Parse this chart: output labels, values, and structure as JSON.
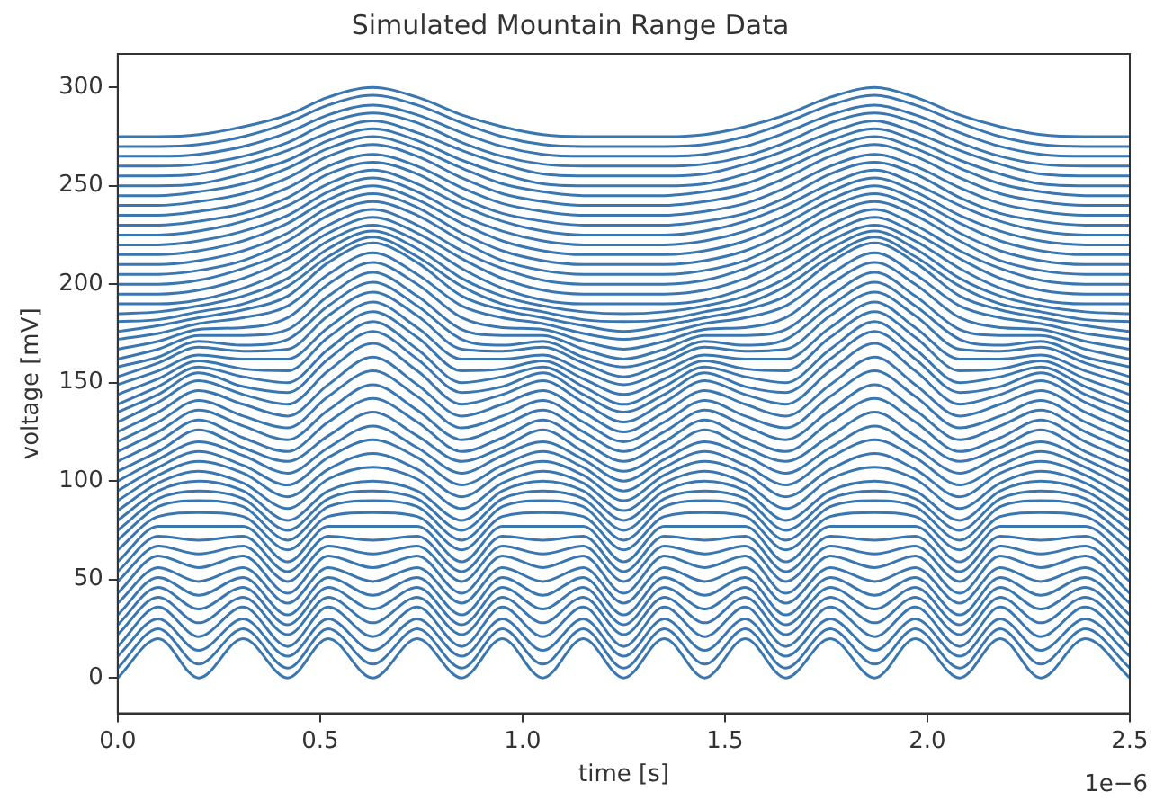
{
  "chart_data": {
    "type": "line",
    "title": "Simulated Mountain Range Data",
    "xlabel": "time [s]",
    "ylabel": "voltage [mV]",
    "annotations": [
      "1e−6"
    ],
    "x": [
      0,
      0.1,
      0.2,
      0.31,
      0.42,
      0.52,
      0.63,
      0.74,
      0.85,
      0.95,
      1.05,
      1.15,
      1.25,
      1.35,
      1.45,
      1.55,
      1.65,
      1.76,
      1.87,
      1.97,
      2.08,
      2.18,
      2.28,
      2.39,
      2.5
    ],
    "xlim": [
      0,
      2.5
    ],
    "xticks": [
      {
        "value": 0,
        "label": "0.0"
      },
      {
        "value": 0.5,
        "label": "0.5"
      },
      {
        "value": 1,
        "label": "1.0"
      },
      {
        "value": 1.5,
        "label": "1.5"
      },
      {
        "value": 2,
        "label": "2.0"
      },
      {
        "value": 2.5,
        "label": "2.5"
      }
    ],
    "ylim": [
      -18,
      317
    ],
    "yticks": [
      0,
      50,
      100,
      150,
      200,
      250,
      300
    ],
    "grid": false,
    "legend": false,
    "series": [
      {
        "color": "#3a76b0",
        "values": [
          0,
          20,
          0,
          20,
          0,
          20,
          0,
          20,
          0,
          20,
          0,
          20,
          0,
          20,
          0,
          20,
          0,
          20,
          0,
          20,
          0,
          20,
          0,
          20,
          0
        ]
      },
      {
        "color": "#3a76b0",
        "values": [
          5,
          25,
          7,
          25,
          5,
          25,
          7,
          25,
          5,
          25,
          7,
          25,
          5,
          25,
          7,
          25,
          5,
          25,
          7,
          25,
          5,
          25,
          7,
          25,
          5
        ]
      },
      {
        "color": "#3a76b0",
        "values": [
          11,
          30,
          14,
          30,
          11,
          30,
          14,
          30,
          11,
          30,
          14,
          30,
          11,
          30,
          14,
          30,
          11,
          30,
          14,
          30,
          11,
          30,
          14,
          30,
          11
        ]
      },
      {
        "color": "#3a76b0",
        "values": [
          16,
          36,
          21,
          36,
          16,
          36,
          21,
          36,
          16,
          36,
          21,
          36,
          16,
          36,
          21,
          36,
          16,
          36,
          21,
          36,
          16,
          36,
          21,
          36,
          16
        ]
      },
      {
        "color": "#3a76b0",
        "values": [
          22,
          41,
          28,
          41,
          22,
          41,
          28,
          41,
          22,
          41,
          28,
          41,
          22,
          41,
          28,
          41,
          22,
          41,
          28,
          41,
          22,
          41,
          28,
          41,
          22
        ]
      },
      {
        "color": "#3a76b0",
        "values": [
          27,
          46,
          35,
          46,
          27,
          46,
          35,
          46,
          27,
          46,
          35,
          46,
          27,
          46,
          35,
          46,
          27,
          46,
          35,
          46,
          27,
          46,
          35,
          46,
          27
        ]
      },
      {
        "color": "#3a76b0",
        "values": [
          32,
          51,
          42,
          51,
          32,
          51,
          42,
          51,
          32,
          51,
          42,
          51,
          32,
          51,
          42,
          51,
          32,
          51,
          42,
          51,
          32,
          51,
          42,
          51,
          32
        ]
      },
      {
        "color": "#3a76b0",
        "values": [
          38,
          56,
          49,
          56,
          38,
          56,
          49,
          56,
          38,
          56,
          49,
          56,
          38,
          56,
          49,
          56,
          38,
          56,
          49,
          56,
          38,
          56,
          49,
          56,
          38
        ]
      },
      {
        "color": "#3a76b0",
        "values": [
          43,
          62,
          56,
          62,
          43,
          62,
          56,
          62,
          43,
          62,
          56,
          62,
          43,
          62,
          56,
          62,
          43,
          62,
          56,
          62,
          43,
          62,
          56,
          62,
          43
        ]
      },
      {
        "color": "#3a76b0",
        "values": [
          49,
          67,
          63,
          67,
          49,
          67,
          63,
          67,
          49,
          67,
          63,
          67,
          49,
          67,
          63,
          67,
          49,
          67,
          63,
          67,
          49,
          67,
          63,
          67,
          49
        ]
      },
      {
        "color": "#3a76b0",
        "values": [
          54,
          72,
          70,
          72,
          54,
          72,
          70,
          72,
          54,
          72,
          70,
          72,
          54,
          72,
          70,
          72,
          54,
          72,
          70,
          72,
          54,
          72,
          70,
          72,
          54
        ]
      },
      {
        "color": "#3a76b0",
        "values": [
          59,
          77,
          77,
          77,
          59,
          77,
          77,
          77,
          59,
          77,
          77,
          77,
          59,
          77,
          77,
          77,
          59,
          77,
          77,
          77,
          59,
          77,
          77,
          77,
          59
        ]
      },
      {
        "color": "#3a76b0",
        "values": [
          65,
          82,
          84,
          82,
          65,
          82,
          84,
          82,
          65,
          82,
          84,
          82,
          65,
          82,
          84,
          82,
          65,
          82,
          84,
          82,
          65,
          82,
          84,
          82,
          65
        ]
      },
      {
        "color": "#3a76b0",
        "values": [
          70,
          87,
          90,
          87,
          70,
          87,
          90,
          87,
          70,
          87,
          90,
          87,
          70,
          87,
          90,
          87,
          70,
          87,
          90,
          87,
          70,
          87,
          90,
          87,
          70
        ]
      },
      {
        "color": "#3a76b0",
        "values": [
          75,
          91,
          95,
          91,
          75,
          91,
          95,
          91,
          75,
          91,
          95,
          91,
          75,
          91,
          95,
          91,
          75,
          91,
          95,
          91,
          75,
          91,
          95,
          91,
          75
        ]
      },
      {
        "color": "#3a76b0",
        "values": [
          80,
          95,
          100,
          95,
          80,
          95,
          100,
          95,
          80,
          95,
          100,
          95,
          80,
          95,
          100,
          95,
          80,
          95,
          100,
          95,
          80,
          95,
          100,
          95,
          80
        ]
      },
      {
        "color": "#3a76b0",
        "values": [
          85,
          99,
          105,
          99,
          86,
          101,
          107,
          101,
          86,
          99,
          105,
          99,
          85,
          99,
          105,
          99,
          86,
          101,
          107,
          101,
          86,
          99,
          105,
          99,
          85
        ]
      },
      {
        "color": "#3a76b0",
        "values": [
          90,
          103,
          110,
          104,
          92,
          106,
          114,
          106,
          92,
          104,
          110,
          103,
          90,
          103,
          110,
          104,
          92,
          106,
          114,
          106,
          92,
          104,
          110,
          103,
          90
        ]
      },
      {
        "color": "#3a76b0",
        "values": [
          95,
          107,
          115,
          108,
          98,
          112,
          121,
          112,
          98,
          108,
          115,
          107,
          95,
          107,
          115,
          108,
          98,
          112,
          121,
          112,
          98,
          108,
          115,
          107,
          95
        ]
      },
      {
        "color": "#3a76b0",
        "values": [
          100,
          111,
          120,
          113,
          104,
          117,
          128,
          117,
          104,
          113,
          120,
          111,
          100,
          111,
          120,
          113,
          104,
          117,
          128,
          117,
          104,
          113,
          120,
          111,
          100
        ]
      },
      {
        "color": "#3a76b0",
        "values": [
          105,
          115,
          126,
          117,
          110,
          123,
          135,
          123,
          110,
          117,
          126,
          115,
          105,
          115,
          126,
          117,
          110,
          123,
          135,
          123,
          110,
          117,
          126,
          115,
          105
        ]
      },
      {
        "color": "#3a76b0",
        "values": [
          110,
          120,
          131,
          122,
          115,
          130,
          142,
          130,
          115,
          122,
          131,
          120,
          110,
          120,
          131,
          122,
          115,
          130,
          142,
          130,
          115,
          122,
          131,
          120,
          110
        ]
      },
      {
        "color": "#3a76b0",
        "values": [
          115,
          125,
          136,
          128,
          121,
          136,
          149,
          136,
          121,
          128,
          136,
          125,
          115,
          125,
          136,
          128,
          121,
          136,
          149,
          136,
          121,
          128,
          136,
          125,
          115
        ]
      },
      {
        "color": "#3a76b0",
        "values": [
          120,
          130,
          141,
          133,
          127,
          143,
          156,
          143,
          127,
          133,
          141,
          130,
          120,
          130,
          141,
          133,
          127,
          143,
          156,
          143,
          127,
          133,
          141,
          130,
          120
        ]
      },
      {
        "color": "#3a76b0",
        "values": [
          125,
          135,
          146,
          139,
          133,
          149,
          163,
          149,
          133,
          139,
          146,
          135,
          125,
          135,
          146,
          139,
          133,
          149,
          163,
          149,
          133,
          139,
          146,
          135,
          125
        ]
      },
      {
        "color": "#3a76b0",
        "values": [
          130,
          140,
          151,
          144,
          139,
          156,
          170,
          156,
          139,
          144,
          151,
          140,
          130,
          140,
          151,
          144,
          139,
          156,
          170,
          156,
          139,
          144,
          151,
          140,
          130
        ]
      },
      {
        "color": "#3a76b0",
        "values": [
          135,
          144,
          155,
          148,
          145,
          162,
          176,
          162,
          145,
          148,
          155,
          144,
          135,
          144,
          155,
          148,
          145,
          162,
          176,
          162,
          145,
          148,
          155,
          144,
          135
        ]
      },
      {
        "color": "#3a76b0",
        "values": [
          139,
          148,
          158,
          153,
          150,
          167,
          181,
          167,
          150,
          153,
          158,
          148,
          139,
          148,
          158,
          153,
          150,
          167,
          181,
          167,
          150,
          153,
          158,
          148,
          139
        ]
      },
      {
        "color": "#3a76b0",
        "values": [
          144,
          152,
          161,
          157,
          156,
          173,
          186,
          173,
          156,
          157,
          161,
          152,
          144,
          152,
          161,
          157,
          156,
          173,
          186,
          173,
          156,
          157,
          161,
          152,
          144
        ]
      },
      {
        "color": "#3a76b0",
        "values": [
          149,
          156,
          164,
          162,
          162,
          178,
          191,
          178,
          162,
          162,
          164,
          156,
          149,
          156,
          164,
          162,
          162,
          178,
          191,
          178,
          162,
          162,
          164,
          156,
          149
        ]
      },
      {
        "color": "#3a76b0",
        "values": [
          153,
          160,
          168,
          166,
          167,
          184,
          196,
          184,
          167,
          166,
          168,
          160,
          153,
          160,
          168,
          166,
          167,
          184,
          196,
          184,
          167,
          166,
          168,
          160,
          153
        ]
      },
      {
        "color": "#3a76b0",
        "values": [
          158,
          163,
          171,
          169,
          172,
          189,
          201,
          189,
          172,
          169,
          171,
          163,
          158,
          163,
          171,
          169,
          172,
          189,
          201,
          189,
          172,
          169,
          171,
          163,
          158
        ]
      },
      {
        "color": "#3a76b0",
        "values": [
          162,
          167,
          174,
          174,
          177,
          194,
          206,
          194,
          177,
          174,
          174,
          167,
          162,
          167,
          174,
          174,
          177,
          194,
          206,
          194,
          177,
          174,
          174,
          167,
          162
        ]
      },
      {
        "color": "#3a76b0",
        "values": [
          167,
          171,
          177,
          178,
          183,
          200,
          211,
          200,
          183,
          178,
          177,
          171,
          167,
          171,
          177,
          178,
          183,
          200,
          211,
          200,
          183,
          178,
          177,
          171,
          167
        ]
      },
      {
        "color": "#3a76b0",
        "values": [
          172,
          175,
          180,
          183,
          189,
          205,
          216,
          205,
          189,
          183,
          180,
          175,
          172,
          175,
          180,
          183,
          189,
          205,
          216,
          205,
          189,
          183,
          180,
          175,
          172
        ]
      },
      {
        "color": "#3a76b0",
        "values": [
          176,
          179,
          183,
          187,
          194,
          211,
          221,
          211,
          194,
          187,
          183,
          179,
          176,
          179,
          183,
          187,
          194,
          211,
          221,
          211,
          194,
          187,
          183,
          179,
          176
        ]
      },
      {
        "color": "#3a76b0",
        "values": [
          181,
          182,
          186,
          190,
          199,
          214,
          224,
          214,
          199,
          190,
          186,
          182,
          181,
          182,
          186,
          190,
          199,
          214,
          224,
          214,
          199,
          190,
          186,
          182,
          181
        ]
      },
      {
        "color": "#3a76b0",
        "values": [
          185,
          186,
          189,
          194,
          203,
          218,
          227,
          218,
          203,
          194,
          189,
          186,
          185,
          186,
          189,
          194,
          203,
          218,
          227,
          218,
          203,
          194,
          189,
          186,
          185
        ]
      },
      {
        "color": "#3a76b0",
        "values": [
          190,
          190,
          192,
          198,
          208,
          222,
          230,
          222,
          208,
          198,
          192,
          190,
          190,
          190,
          192,
          198,
          208,
          222,
          230,
          222,
          208,
          198,
          192,
          190,
          190
        ]
      },
      {
        "color": "#3a76b0",
        "values": [
          195,
          195,
          197,
          203,
          213,
          226,
          234,
          226,
          213,
          203,
          197,
          195,
          195,
          195,
          197,
          203,
          213,
          226,
          234,
          226,
          213,
          203,
          197,
          195,
          195
        ]
      },
      {
        "color": "#3a76b0",
        "values": [
          200,
          200,
          202,
          208,
          217,
          230,
          238,
          230,
          217,
          208,
          202,
          200,
          200,
          200,
          202,
          208,
          217,
          230,
          238,
          230,
          217,
          208,
          202,
          200,
          200
        ]
      },
      {
        "color": "#3a76b0",
        "values": [
          205,
          205,
          207,
          212,
          222,
          235,
          242,
          235,
          222,
          212,
          207,
          205,
          205,
          205,
          207,
          212,
          222,
          235,
          242,
          235,
          222,
          212,
          207,
          205,
          205
        ]
      },
      {
        "color": "#3a76b0",
        "values": [
          210,
          210,
          212,
          217,
          226,
          239,
          246,
          239,
          226,
          217,
          212,
          210,
          210,
          210,
          212,
          217,
          226,
          239,
          246,
          239,
          226,
          217,
          212,
          210,
          210
        ]
      },
      {
        "color": "#3a76b0",
        "values": [
          215,
          215,
          217,
          222,
          231,
          243,
          250,
          243,
          231,
          222,
          217,
          215,
          215,
          215,
          217,
          222,
          231,
          243,
          250,
          243,
          231,
          222,
          217,
          215,
          215
        ]
      },
      {
        "color": "#3a76b0",
        "values": [
          220,
          220,
          222,
          227,
          235,
          247,
          254,
          247,
          235,
          227,
          222,
          220,
          220,
          220,
          222,
          227,
          235,
          247,
          254,
          247,
          235,
          227,
          222,
          220,
          220
        ]
      },
      {
        "color": "#3a76b0",
        "values": [
          225,
          225,
          227,
          232,
          240,
          251,
          258,
          251,
          240,
          232,
          227,
          225,
          225,
          225,
          227,
          232,
          240,
          251,
          258,
          251,
          240,
          232,
          227,
          225,
          225
        ]
      },
      {
        "color": "#3a76b0",
        "values": [
          230,
          230,
          232,
          236,
          244,
          256,
          262,
          256,
          244,
          236,
          232,
          230,
          230,
          230,
          232,
          236,
          244,
          256,
          262,
          256,
          244,
          236,
          232,
          230,
          230
        ]
      },
      {
        "color": "#3a76b0",
        "values": [
          235,
          235,
          237,
          241,
          249,
          260,
          266,
          260,
          249,
          241,
          237,
          235,
          235,
          235,
          237,
          241,
          249,
          260,
          266,
          260,
          249,
          241,
          237,
          235,
          235
        ]
      },
      {
        "color": "#3a76b0",
        "values": [
          240,
          240,
          242,
          246,
          254,
          265,
          271,
          265,
          254,
          246,
          242,
          240,
          240,
          240,
          242,
          246,
          254,
          265,
          271,
          265,
          254,
          246,
          242,
          240,
          240
        ]
      },
      {
        "color": "#3a76b0",
        "values": [
          245,
          245,
          247,
          251,
          259,
          269,
          275,
          269,
          259,
          251,
          247,
          245,
          245,
          245,
          247,
          251,
          259,
          269,
          275,
          269,
          259,
          251,
          247,
          245,
          245
        ]
      },
      {
        "color": "#3a76b0",
        "values": [
          250,
          250,
          251,
          256,
          263,
          273,
          279,
          273,
          263,
          256,
          251,
          250,
          250,
          250,
          251,
          256,
          263,
          273,
          279,
          273,
          263,
          256,
          251,
          250,
          250
        ]
      },
      {
        "color": "#3a76b0",
        "values": [
          255,
          255,
          256,
          261,
          268,
          277,
          283,
          277,
          268,
          261,
          256,
          255,
          255,
          255,
          256,
          261,
          268,
          277,
          283,
          277,
          268,
          261,
          256,
          255,
          255
        ]
      },
      {
        "color": "#3a76b0",
        "values": [
          260,
          260,
          261,
          265,
          272,
          282,
          287,
          282,
          272,
          265,
          261,
          260,
          260,
          260,
          261,
          265,
          272,
          282,
          287,
          282,
          272,
          265,
          261,
          260,
          260
        ]
      },
      {
        "color": "#3a76b0",
        "values": [
          265,
          265,
          266,
          270,
          277,
          286,
          291,
          286,
          277,
          270,
          266,
          265,
          265,
          265,
          266,
          270,
          277,
          286,
          291,
          286,
          277,
          270,
          266,
          265,
          265
        ]
      },
      {
        "color": "#3a76b0",
        "values": [
          270,
          270,
          271,
          275,
          282,
          291,
          296,
          291,
          282,
          275,
          271,
          270,
          270,
          270,
          271,
          275,
          282,
          291,
          296,
          291,
          282,
          275,
          271,
          270,
          270
        ]
      },
      {
        "color": "#3a76b0",
        "values": [
          275,
          275,
          276,
          280,
          286,
          295,
          300,
          295,
          286,
          280,
          276,
          275,
          275,
          275,
          276,
          280,
          286,
          295,
          300,
          295,
          286,
          280,
          276,
          275,
          275
        ]
      }
    ]
  }
}
